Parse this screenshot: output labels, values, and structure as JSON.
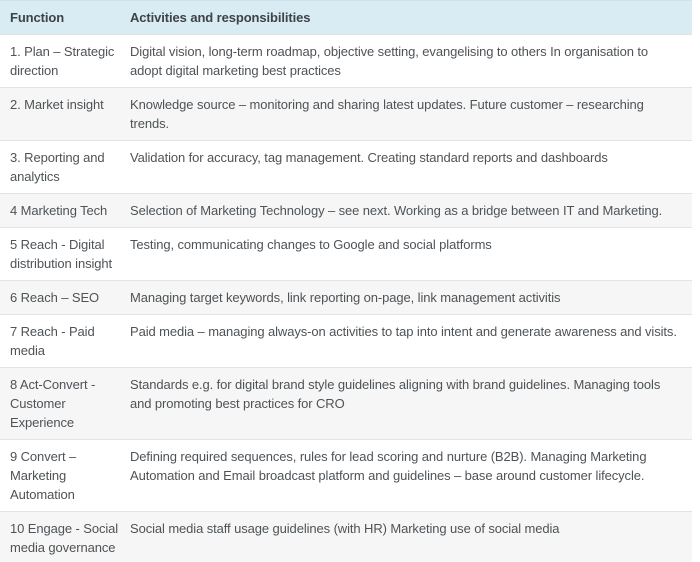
{
  "table": {
    "columns": [
      {
        "label": "Function"
      },
      {
        "label": "Activities and responsibilities"
      }
    ],
    "rows": [
      {
        "function": "1. Plan – Strategic\ndirection",
        "activities": "Digital vision, long-term roadmap, objective setting, evangelising to others In organisation to\nadopt digital marketing best practices"
      },
      {
        "function": "2. Market insight",
        "activities": "Knowledge source – monitoring and sharing latest updates. Future customer – researching\ntrends."
      },
      {
        "function": "3. Reporting and\nanalytics",
        "activities": "Validation for accuracy, tag management. Creating standard reports and dashboards"
      },
      {
        "function": "4 Marketing Tech",
        "activities": "Selection of Marketing Technology – see next. Working as a bridge between IT and Marketing."
      },
      {
        "function": "5 Reach - Digital\ndistribution insight",
        "activities": "Testing, communicating changes to Google and social platforms"
      },
      {
        "function": "6 Reach – SEO",
        "activities": "Managing target keywords, link reporting on-page, link management activitis"
      },
      {
        "function": "7 Reach - Paid\nmedia",
        "activities": "Paid media – managing always-on activities to tap into intent and generate awareness and visits."
      },
      {
        "function": "8 Act-Convert -\nCustomer\nExperience",
        "activities": "Standards e.g. for digital brand style guidelines aligning with brand guidelines. Managing tools\nand promoting best practices for CRO"
      },
      {
        "function": "9 Convert –\nMarketing\nAutomation",
        "activities": "Defining required sequences, rules for lead scoring and nurture (B2B). Managing Marketing\nAutomation and Email broadcast platform and guidelines – base around customer lifecycle."
      },
      {
        "function": "10 Engage - Social\nmedia governance",
        "activities": "Social media staff usage guidelines (with HR) Marketing use of social media"
      }
    ]
  },
  "colors": {
    "header_bg": "#d9ecf4",
    "row_alt_bg": "#f6f6f6",
    "row_bg": "#ffffff",
    "border": "#e3e3e3",
    "text": "#4e5357",
    "header_text": "#3d4347"
  }
}
